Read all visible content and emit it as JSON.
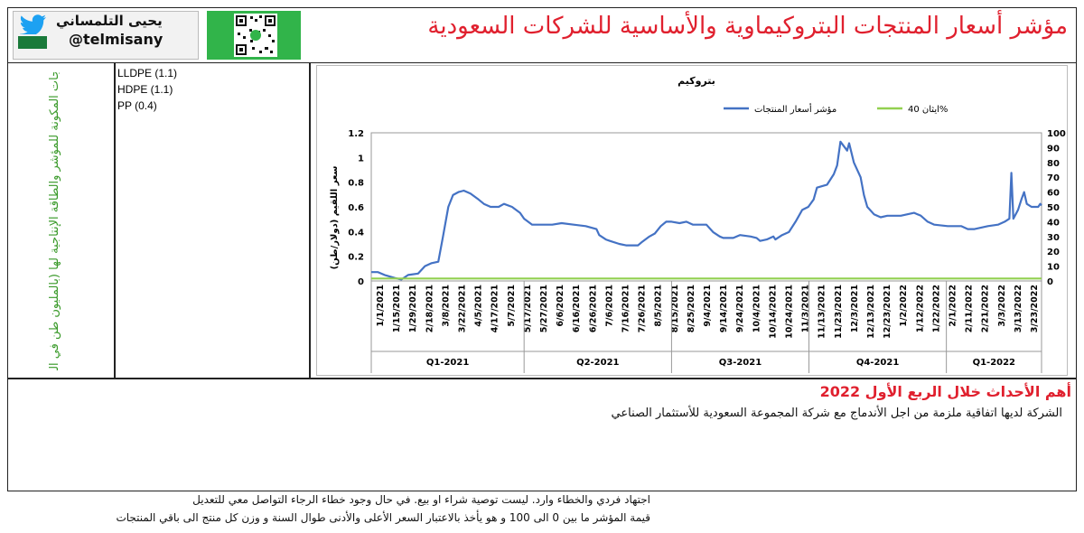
{
  "header": {
    "title": "مؤشر أسعار المنتجات البتروكيماوية والأساسية للشركات السعودية",
    "author_name": "يحيى التلمساني",
    "author_handle": "@telmisany"
  },
  "left_panel": {
    "vertical_text": "المنتجات المكونة للمؤشر والطاقة الإنتاجية لها (بالمليون طن في السنة)"
  },
  "products": [
    "LLDPE (1.1)",
    "HDPE (1.1)",
    "PP (0.4)"
  ],
  "events": {
    "title": "أهم الأحداث خلال الربع الأول 2022",
    "text": "الشركة لديها اتفاقية ملزمة من اجل الأندماج مع شركة المجموعة السعودية للأستثمار الصناعي"
  },
  "footnotes": [
    "اجتهاد فردي والخطاء وارد. ليست توصية شراء او بيع. في حال وجود خطاء الرجاء التواصل معي للتعديل",
    "قيمة المؤشر ما بين 0 الى 100 و هو يأخذ بالاعتبار السعر الأعلى والأدنى طوال السنة و وزن كل منتج الى باقي المنتجات"
  ],
  "colors": {
    "accent": "#e0202e",
    "index_line": "#4472c4",
    "ethane_line": "#92d050"
  },
  "chart_data": {
    "type": "line",
    "title": "بتروكيم",
    "ylabel": "سعر اللقيم (دولار/طن)",
    "ylim": [
      0,
      1.2
    ],
    "y2lim": [
      0,
      100
    ],
    "yticks": [
      "0",
      "0.2",
      "0.4",
      "0.6",
      "0.8",
      "1",
      "1.2"
    ],
    "y2ticks": [
      "0",
      "10",
      "20",
      "30",
      "40",
      "50",
      "60",
      "70",
      "80",
      "90",
      "100"
    ],
    "xtick_labels": [
      "1/1/2021",
      "1/15/2021",
      "1/29/2021",
      "2/18/2021",
      "3/8/2021",
      "3/22/2021",
      "4/5/2021",
      "4/17/2021",
      "5/7/2021",
      "5/17/2021",
      "5/27/2021",
      "6/6/2021",
      "6/16/2021",
      "6/26/2021",
      "7/6/2021",
      "7/16/2021",
      "7/26/2021",
      "8/5/2021",
      "8/15/2021",
      "8/25/2021",
      "9/4/2021",
      "9/14/2021",
      "9/24/2021",
      "10/4/2021",
      "10/14/2021",
      "10/24/2021",
      "11/3/2021",
      "11/13/2021",
      "11/23/2021",
      "12/3/2021",
      "12/13/2021",
      "12/23/2021",
      "1/2/2022",
      "1/12/2022",
      "1/22/2022",
      "2/1/2022",
      "2/11/2022",
      "2/21/2022",
      "3/3/2022",
      "3/13/2022",
      "3/23/2022"
    ],
    "quarters": [
      "Q1-2021",
      "Q2-2021",
      "Q3-2021",
      "Q4-2021",
      "Q1-2022"
    ],
    "quarter_bounds": [
      0,
      0.228,
      0.448,
      0.653,
      0.858,
      1
    ],
    "series": [
      {
        "name": "مؤشر أسعار المنتجات",
        "color": "#4472c4",
        "axis": "right",
        "points": [
          [
            0,
            6
          ],
          [
            0.01,
            6
          ],
          [
            0.02,
            4
          ],
          [
            0.035,
            2
          ],
          [
            0.045,
            1
          ],
          [
            0.055,
            4
          ],
          [
            0.07,
            5
          ],
          [
            0.08,
            10
          ],
          [
            0.09,
            12
          ],
          [
            0.1,
            13
          ],
          [
            0.107,
            30
          ],
          [
            0.115,
            50
          ],
          [
            0.122,
            58
          ],
          [
            0.13,
            60
          ],
          [
            0.138,
            61
          ],
          [
            0.148,
            59
          ],
          [
            0.16,
            55
          ],
          [
            0.168,
            52
          ],
          [
            0.178,
            50
          ],
          [
            0.19,
            50
          ],
          [
            0.198,
            52
          ],
          [
            0.21,
            50
          ],
          [
            0.222,
            46
          ],
          [
            0.228,
            42
          ],
          [
            0.24,
            38
          ],
          [
            0.256,
            38
          ],
          [
            0.27,
            38
          ],
          [
            0.284,
            39
          ],
          [
            0.302,
            38
          ],
          [
            0.32,
            37
          ],
          [
            0.336,
            35
          ],
          [
            0.34,
            31
          ],
          [
            0.35,
            28
          ],
          [
            0.356,
            27
          ],
          [
            0.37,
            25
          ],
          [
            0.38,
            24
          ],
          [
            0.39,
            24
          ],
          [
            0.398,
            24
          ],
          [
            0.403,
            26
          ],
          [
            0.415,
            30
          ],
          [
            0.423,
            32
          ],
          [
            0.432,
            37
          ],
          [
            0.44,
            40
          ],
          [
            0.448,
            40
          ],
          [
            0.46,
            39
          ],
          [
            0.47,
            40
          ],
          [
            0.48,
            38
          ],
          [
            0.5,
            38
          ],
          [
            0.51,
            33
          ],
          [
            0.52,
            30
          ],
          [
            0.525,
            29
          ],
          [
            0.54,
            29
          ],
          [
            0.55,
            31
          ],
          [
            0.566,
            30
          ],
          [
            0.575,
            29
          ],
          [
            0.58,
            27
          ],
          [
            0.59,
            28
          ],
          [
            0.6,
            30
          ],
          [
            0.603,
            28
          ],
          [
            0.613,
            31
          ],
          [
            0.623,
            33
          ],
          [
            0.633,
            40
          ],
          [
            0.643,
            48
          ],
          [
            0.652,
            50
          ],
          [
            0.66,
            55
          ],
          [
            0.665,
            63
          ],
          [
            0.68,
            65
          ],
          [
            0.69,
            72
          ],
          [
            0.695,
            78
          ],
          [
            0.7,
            94
          ],
          [
            0.71,
            88
          ],
          [
            0.713,
            93
          ],
          [
            0.72,
            80
          ],
          [
            0.73,
            70
          ],
          [
            0.735,
            58
          ],
          [
            0.74,
            50
          ],
          [
            0.75,
            45
          ],
          [
            0.76,
            43
          ],
          [
            0.77,
            44
          ],
          [
            0.78,
            44
          ],
          [
            0.79,
            44
          ],
          [
            0.81,
            46
          ],
          [
            0.82,
            44
          ],
          [
            0.83,
            40
          ],
          [
            0.84,
            38
          ],
          [
            0.86,
            37
          ],
          [
            0.88,
            37
          ],
          [
            0.89,
            35
          ],
          [
            0.9,
            35
          ],
          [
            0.92,
            37
          ],
          [
            0.935,
            38
          ],
          [
            0.945,
            40
          ],
          [
            0.952,
            42
          ],
          [
            0.955,
            73
          ],
          [
            0.958,
            42
          ],
          [
            0.965,
            48
          ],
          [
            0.97,
            55
          ],
          [
            0.974,
            60
          ],
          [
            0.978,
            52
          ],
          [
            0.985,
            50
          ],
          [
            0.995,
            50
          ],
          [
            0.998,
            52
          ],
          [
            1,
            51
          ]
        ]
      },
      {
        "name": "ايثان 40%",
        "color": "#92d050",
        "axis": "left",
        "points": [
          [
            0,
            0.02
          ],
          [
            1,
            0.02
          ]
        ]
      }
    ],
    "legend": [
      "ايثان 40%",
      "مؤشر أسعار المنتجات"
    ],
    "legend_position": "top"
  }
}
